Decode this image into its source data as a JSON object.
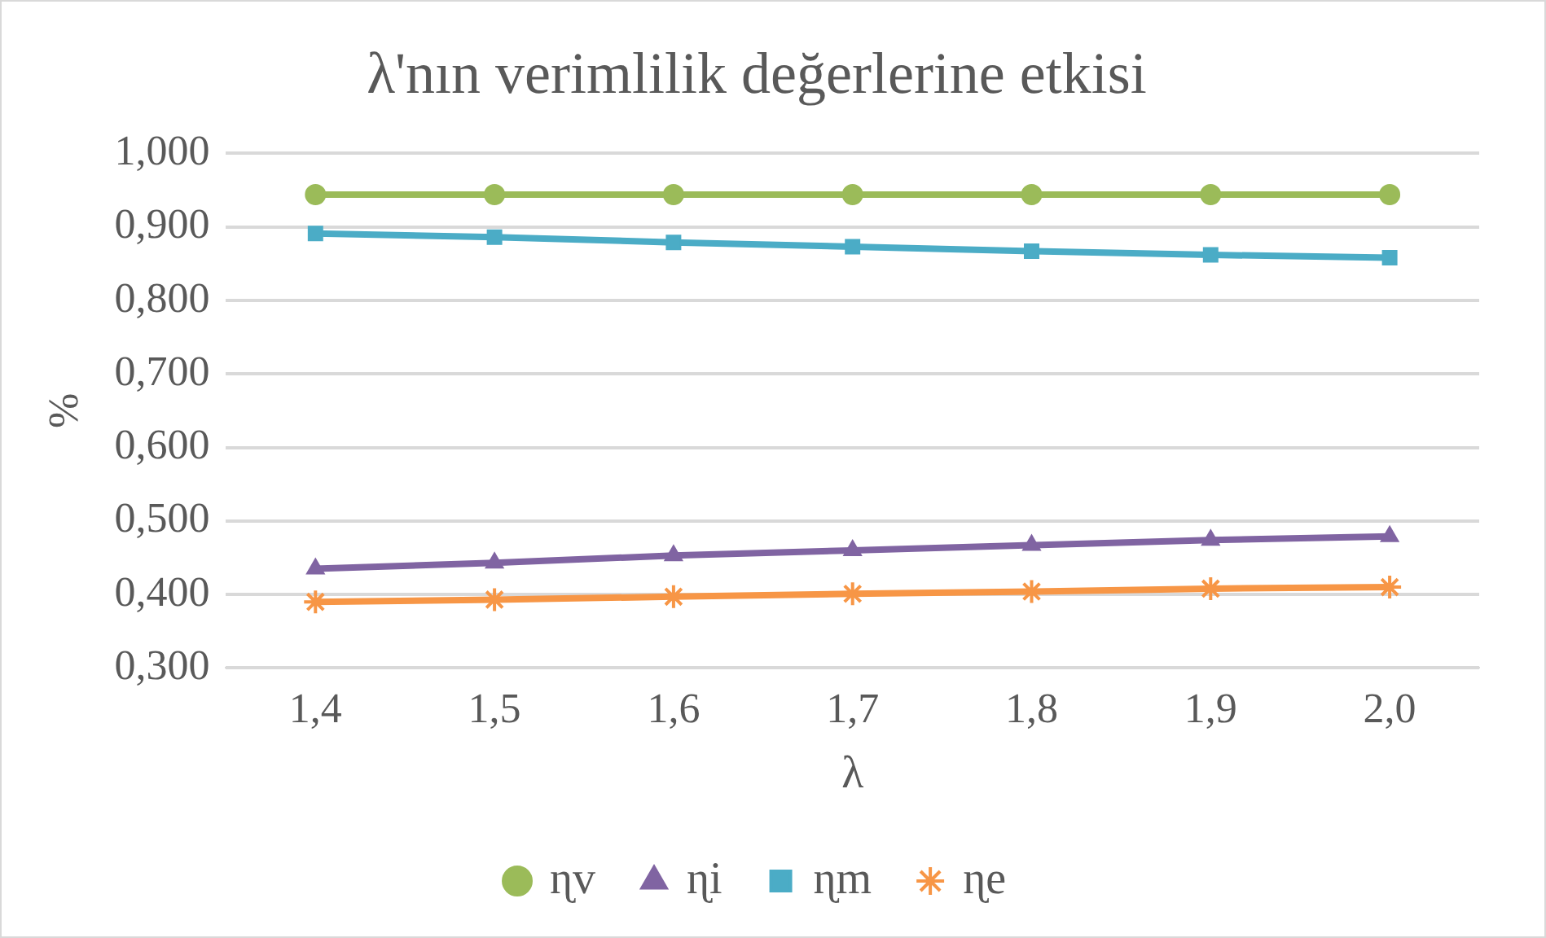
{
  "chart_data": {
    "type": "line",
    "title": "λ'nın verimlilik değerlerine etkisi",
    "xlabel": "λ",
    "ylabel": "%",
    "categories": [
      "1,4",
      "1,5",
      "1,6",
      "1,7",
      "1,8",
      "1,9",
      "2,0"
    ],
    "ylim": [
      0.3,
      1.0
    ],
    "yticks": [
      {
        "value": 0.3,
        "label": "0,300"
      },
      {
        "value": 0.4,
        "label": "0,400"
      },
      {
        "value": 0.5,
        "label": "0,500"
      },
      {
        "value": 0.6,
        "label": "0,600"
      },
      {
        "value": 0.7,
        "label": "0,700"
      },
      {
        "value": 0.8,
        "label": "0,800"
      },
      {
        "value": 0.9,
        "label": "0,900"
      },
      {
        "value": 1.0,
        "label": "1,000"
      }
    ],
    "grid": "y",
    "legend": "bottom",
    "line_style": "solid",
    "series": [
      {
        "name": "ɳv",
        "color": "#9bbb59",
        "marker": "circle",
        "values": [
          0.944,
          0.944,
          0.944,
          0.944,
          0.944,
          0.944,
          0.944
        ]
      },
      {
        "name": "ɳi",
        "color": "#8064a2",
        "marker": "triangle",
        "values": [
          0.435,
          0.443,
          0.453,
          0.46,
          0.467,
          0.474,
          0.479
        ]
      },
      {
        "name": "ɳm",
        "color": "#4bacc6",
        "marker": "square",
        "values": [
          0.891,
          0.886,
          0.879,
          0.873,
          0.867,
          0.862,
          0.858
        ]
      },
      {
        "name": "ɳe",
        "color": "#f79646",
        "marker": "cross",
        "values": [
          0.39,
          0.393,
          0.397,
          0.401,
          0.404,
          0.408,
          0.41
        ]
      }
    ]
  }
}
